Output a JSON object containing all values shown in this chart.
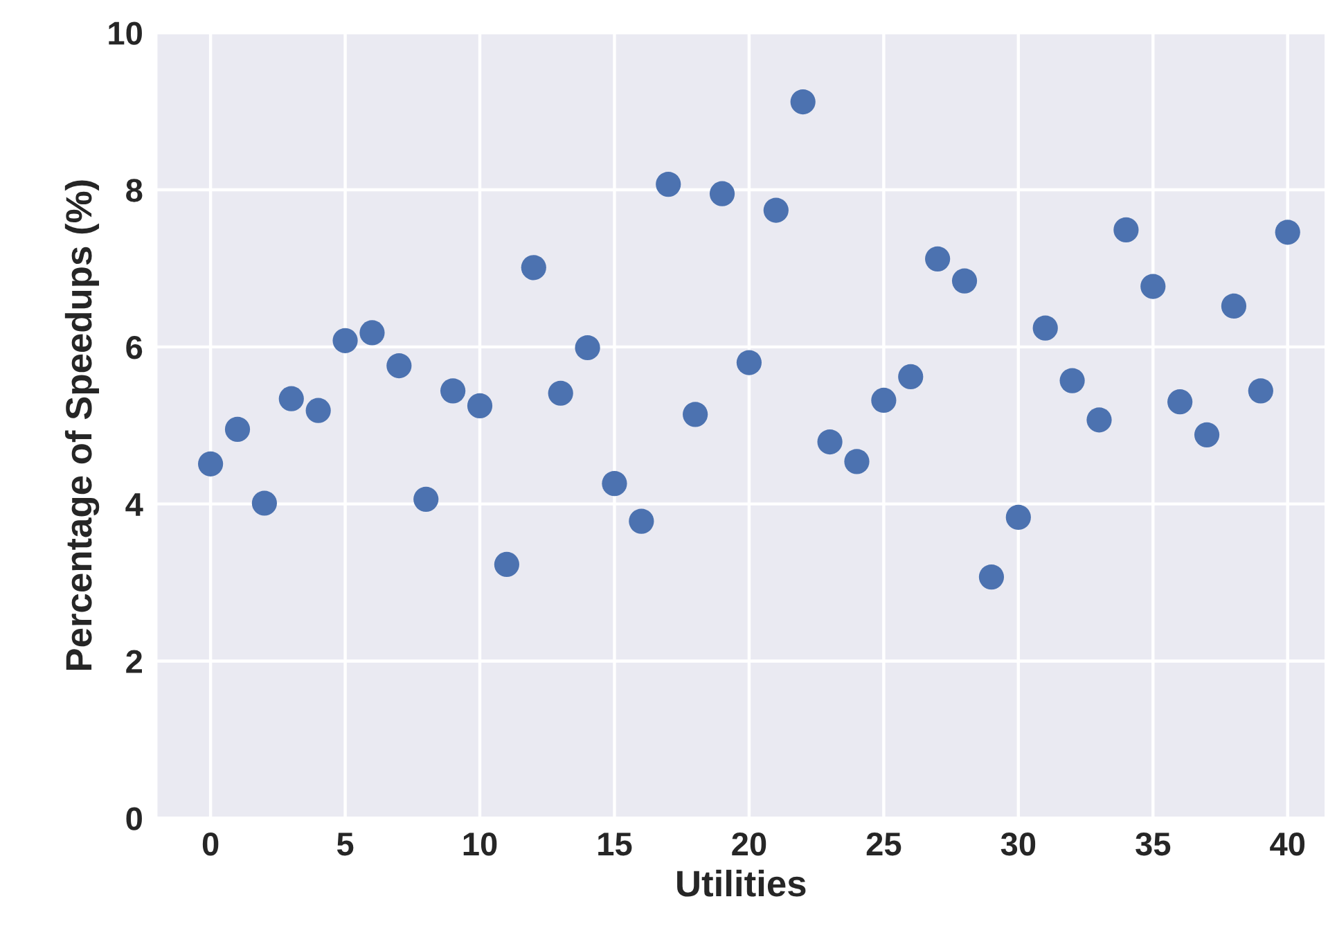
{
  "chart_data": {
    "type": "scatter",
    "xlabel": "Utilities",
    "ylabel": "Percentage of Speedups (%)",
    "x": [
      0,
      1,
      2,
      3,
      4,
      5,
      6,
      7,
      8,
      9,
      10,
      11,
      12,
      13,
      14,
      15,
      16,
      17,
      18,
      19,
      20,
      21,
      22,
      23,
      24,
      25,
      26,
      27,
      28,
      29,
      30,
      31,
      32,
      33,
      34,
      35,
      36,
      37,
      38,
      39,
      40
    ],
    "series": [
      {
        "color": "#4c72b0",
        "values": [
          4.51,
          4.95,
          4.01,
          5.34,
          5.19,
          6.08,
          6.18,
          5.76,
          4.06,
          5.44,
          5.25,
          3.23,
          7.01,
          5.41,
          5.99,
          4.26,
          3.78,
          8.07,
          5.14,
          7.95,
          5.8,
          7.74,
          9.12,
          4.79,
          4.54,
          5.32,
          5.62,
          7.12,
          6.84,
          3.07,
          3.83,
          6.24,
          5.57,
          5.07,
          7.49,
          6.77,
          5.3,
          4.88,
          6.52,
          5.44,
          7.46
        ]
      }
    ],
    "xlim": [
      -2,
      41.4
    ],
    "xticks": [
      0,
      5,
      10,
      15,
      20,
      25,
      30,
      35,
      40
    ],
    "ylim": [
      0,
      10
    ],
    "yticks": [
      0,
      2,
      4,
      6,
      8,
      10
    ],
    "grid": true,
    "marker": "circle"
  }
}
